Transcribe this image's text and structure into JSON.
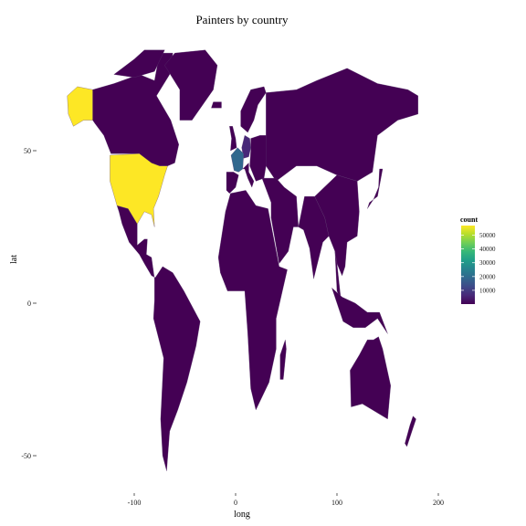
{
  "chart_data": {
    "type": "map",
    "title": "Painters by country",
    "xlabel": "long",
    "ylabel": "lat",
    "x_ticks": [
      -100,
      0,
      100,
      200
    ],
    "y_ticks": [
      -50,
      0,
      50
    ],
    "xlim": [
      -180,
      210
    ],
    "ylim": [
      -58,
      85
    ],
    "grid": false,
    "legend": {
      "title": "count",
      "placement": "right",
      "palette": "viridis",
      "min": 0,
      "max": 57000,
      "breaks": [
        10000,
        20000,
        30000,
        40000,
        50000
      ]
    },
    "colors": {
      "viridis": [
        "#440154",
        "#482878",
        "#3e4a89",
        "#31688e",
        "#26828e",
        "#1f9e89",
        "#35b779",
        "#6ece58",
        "#b5de2b",
        "#fde725"
      ]
    },
    "regions": [
      {
        "name": "United States",
        "count": 55000
      },
      {
        "name": "Alaska",
        "count": 55000
      },
      {
        "name": "France",
        "count": 21000
      },
      {
        "name": "Germany",
        "count": 8000
      },
      {
        "name": "Other countries",
        "count": 800
      }
    ]
  }
}
